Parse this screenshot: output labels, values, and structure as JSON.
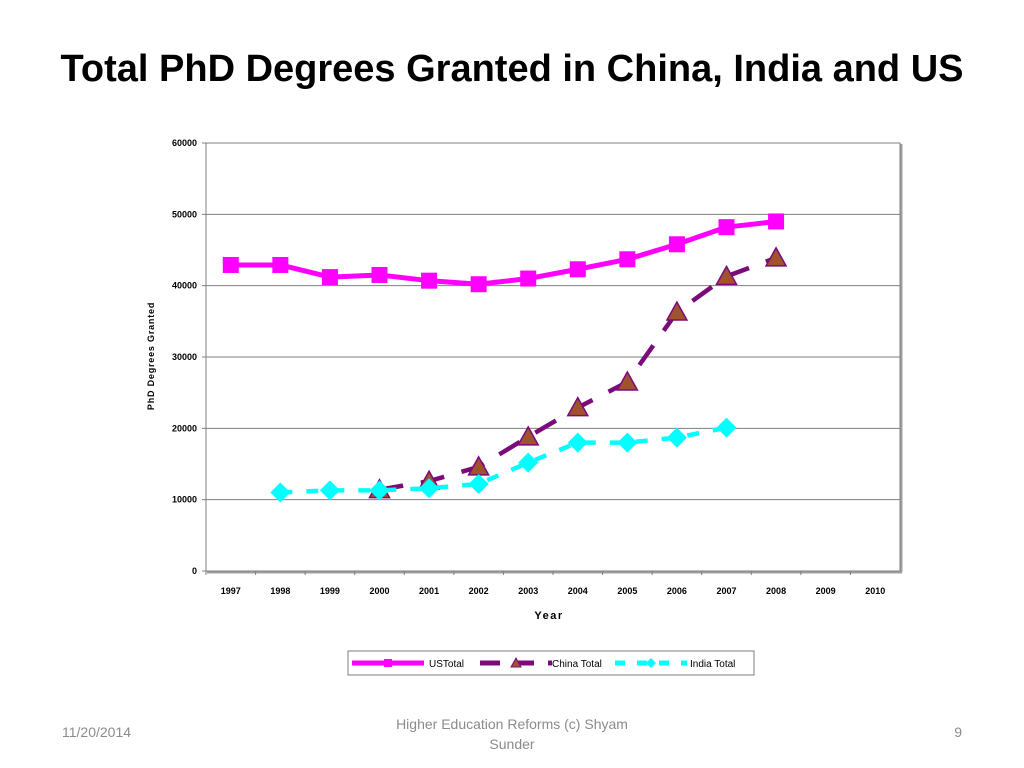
{
  "slide": {
    "title": "Total PhD Degrees Granted in China, India and US",
    "footer_date": "11/20/2014",
    "footer_center": "Higher Education Reforms (c) Shyam Sunder",
    "page_number": "9"
  },
  "chart_data": {
    "type": "line",
    "title": "",
    "xlabel": "Year",
    "ylabel": "PhD Degrees Granted",
    "categories": [
      "1997",
      "1998",
      "1999",
      "2000",
      "2001",
      "2002",
      "2003",
      "2004",
      "2005",
      "2006",
      "2007",
      "2008",
      "2009",
      "2010"
    ],
    "ylim": [
      0,
      60000
    ],
    "yticks": [
      0,
      10000,
      20000,
      30000,
      40000,
      50000,
      60000
    ],
    "grid": true,
    "legend_position": "bottom",
    "series": [
      {
        "name": "USTotal",
        "color": "#ff00ff",
        "marker": "square",
        "dash": "solid",
        "values": [
          42900,
          42900,
          41200,
          41500,
          40700,
          40200,
          41000,
          42300,
          43700,
          45800,
          48200,
          49000,
          null,
          null
        ]
      },
      {
        "name": "China Total",
        "color": "#7b0a7b",
        "marker": "triangle",
        "marker_fill": "#a0522d",
        "dash": "dashed",
        "values": [
          null,
          null,
          null,
          11400,
          12600,
          14600,
          18800,
          22900,
          26500,
          36300,
          41300,
          43900,
          null,
          null
        ]
      },
      {
        "name": "India Total",
        "color": "#00ffff",
        "marker": "diamond",
        "dash": "dashed",
        "values": [
          null,
          11000,
          11300,
          11300,
          11600,
          12200,
          15200,
          18000,
          18000,
          18700,
          20100,
          null,
          null,
          null
        ]
      }
    ]
  }
}
